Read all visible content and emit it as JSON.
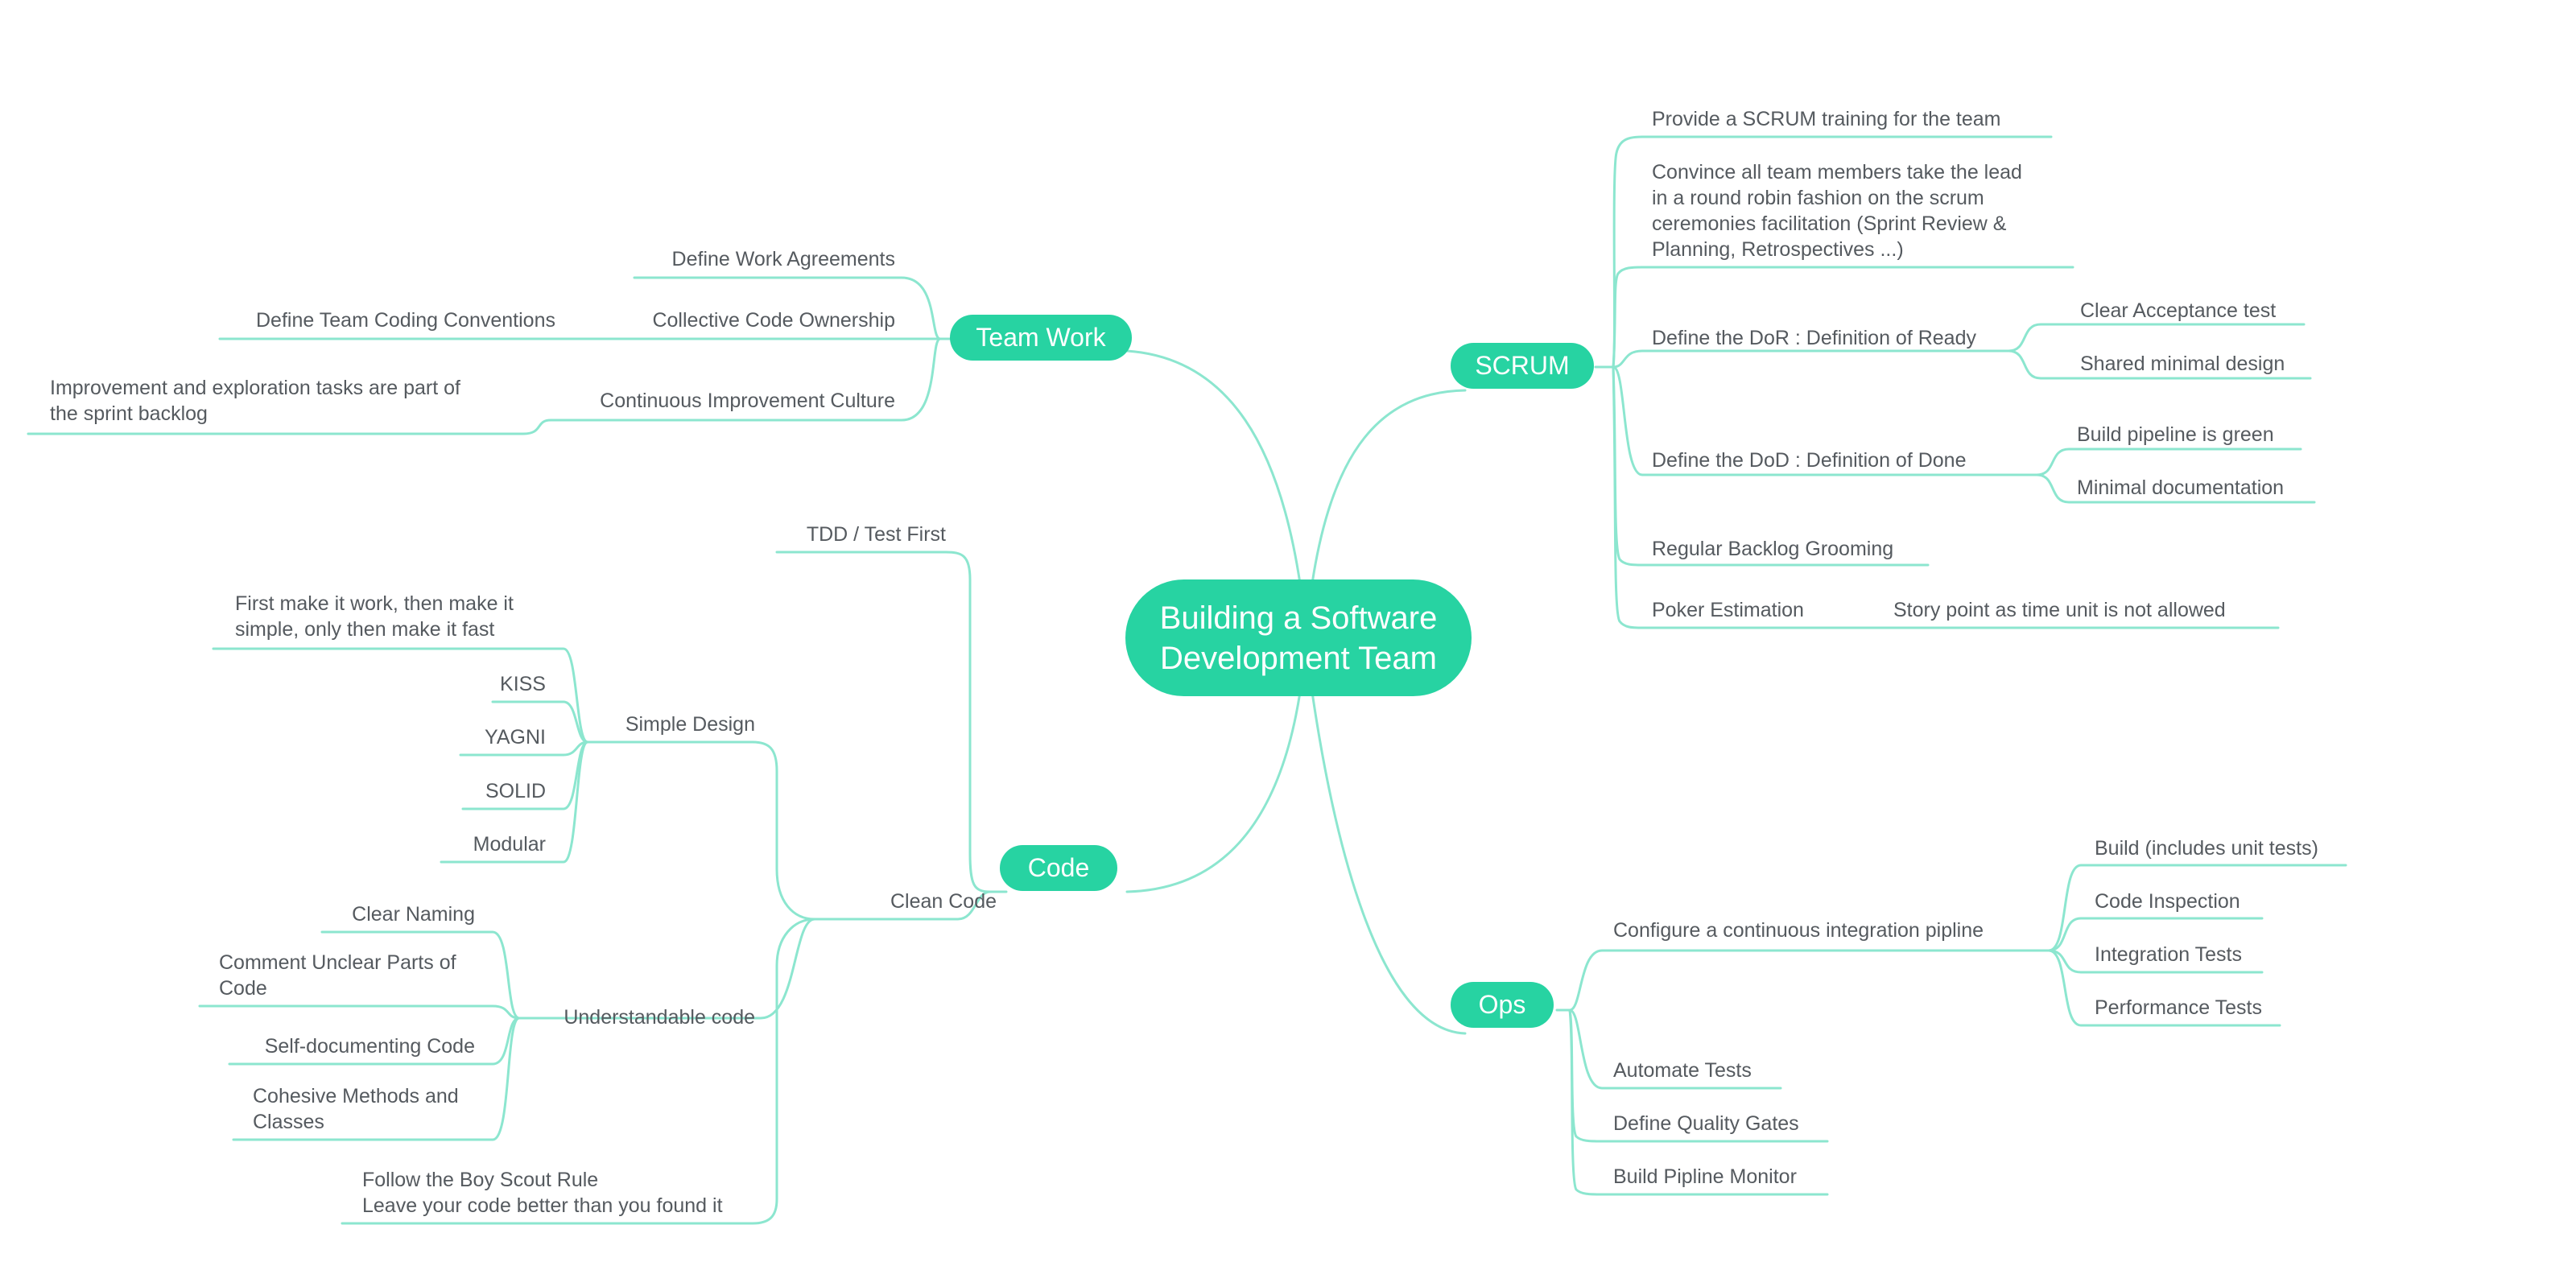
{
  "theme": {
    "accent": "#27d3a2",
    "line": "#8ce6cf",
    "text": "#555a5f"
  },
  "root": {
    "line1": "Building a Software",
    "line2": "Development Team"
  },
  "team_work": {
    "label": "Team Work",
    "define_work_agreements": "Define Work Agreements",
    "collective_code_ownership": "Collective Code Ownership",
    "define_team_coding_conventions": "Define Team Coding Conventions",
    "continuous_improvement_culture": "Continuous Improvement Culture",
    "improvement_tasks_line1": "Improvement and exploration tasks are part of",
    "improvement_tasks_line2": "the sprint backlog"
  },
  "code": {
    "label": "Code",
    "tdd": "TDD / Test First",
    "clean_code": "Clean Code",
    "simple_design": {
      "label": "Simple Design",
      "first_make_it_work_line1": "First make it work, then make it",
      "first_make_it_work_line2": "simple, only then make it fast",
      "kiss": "KISS",
      "yagni": "YAGNI",
      "solid": "SOLID",
      "modular": "Modular"
    },
    "understandable_code": {
      "label": "Understandable code",
      "clear_naming": "Clear Naming",
      "comment_unclear_line1": "Comment Unclear Parts of",
      "comment_unclear_line2": "Code",
      "self_documenting": "Self-documenting Code",
      "cohesive_line1": "Cohesive Methods and",
      "cohesive_line2": "Classes"
    },
    "boy_scout_line1": "Follow the Boy Scout Rule",
    "boy_scout_line2": "Leave your code better than you found it"
  },
  "scrum": {
    "label": "SCRUM",
    "training": "Provide a SCRUM training for the team",
    "convince_line1": "Convince all team members take the lead",
    "convince_line2": "in a round robin fashion on the scrum",
    "convince_line3": "ceremonies facilitation (Sprint Review &",
    "convince_line4": "Planning, Retrospectives ...)",
    "dor": "Define the DoR : Definition of Ready",
    "clear_acceptance_test": "Clear Acceptance test",
    "shared_minimal_design": "Shared minimal design",
    "dod": "Define the DoD : Definition of Done",
    "build_pipeline_green": "Build pipeline is green",
    "minimal_documentation": "Minimal documentation",
    "regular_backlog_grooming": "Regular Backlog Grooming",
    "poker_estimation": "Poker Estimation",
    "story_point": "Story point as time unit is not allowed"
  },
  "ops": {
    "label": "Ops",
    "configure_ci": "Configure a continuous integration pipline",
    "build_unit_tests": "Build (includes unit tests)",
    "code_inspection": "Code Inspection",
    "integration_tests": "Integration Tests",
    "performance_tests": "Performance Tests",
    "automate_tests": "Automate Tests",
    "define_quality_gates": "Define Quality Gates",
    "build_pipline_monitor": "Build Pipline Monitor"
  }
}
